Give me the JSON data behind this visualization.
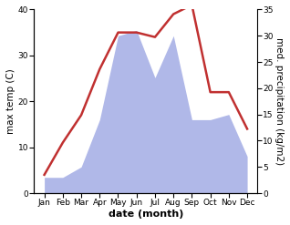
{
  "months": [
    "Jan",
    "Feb",
    "Mar",
    "Apr",
    "May",
    "Jun",
    "Jul",
    "Aug",
    "Sep",
    "Oct",
    "Nov",
    "Dec"
  ],
  "max_temp": [
    4,
    11,
    17,
    27,
    35,
    35,
    34,
    39,
    41,
    22,
    22,
    14
  ],
  "precipitation": [
    3,
    3,
    5,
    14,
    30,
    31,
    22,
    30,
    14,
    14,
    15,
    7
  ],
  "temp_color": "#c03030",
  "precip_color_fill": "#b0b8e8",
  "left_ylabel": "max temp (C)",
  "right_ylabel": "med. precipitation (kg/m2)",
  "xlabel": "date (month)",
  "left_ylim": [
    0,
    40
  ],
  "right_ylim": [
    0,
    35
  ],
  "left_yticks": [
    0,
    10,
    20,
    30,
    40
  ],
  "right_yticks": [
    0,
    5,
    10,
    15,
    20,
    25,
    30,
    35
  ],
  "label_fontsize": 7.5,
  "tick_fontsize": 6.5,
  "xlabel_fontsize": 8,
  "linewidth": 1.8
}
